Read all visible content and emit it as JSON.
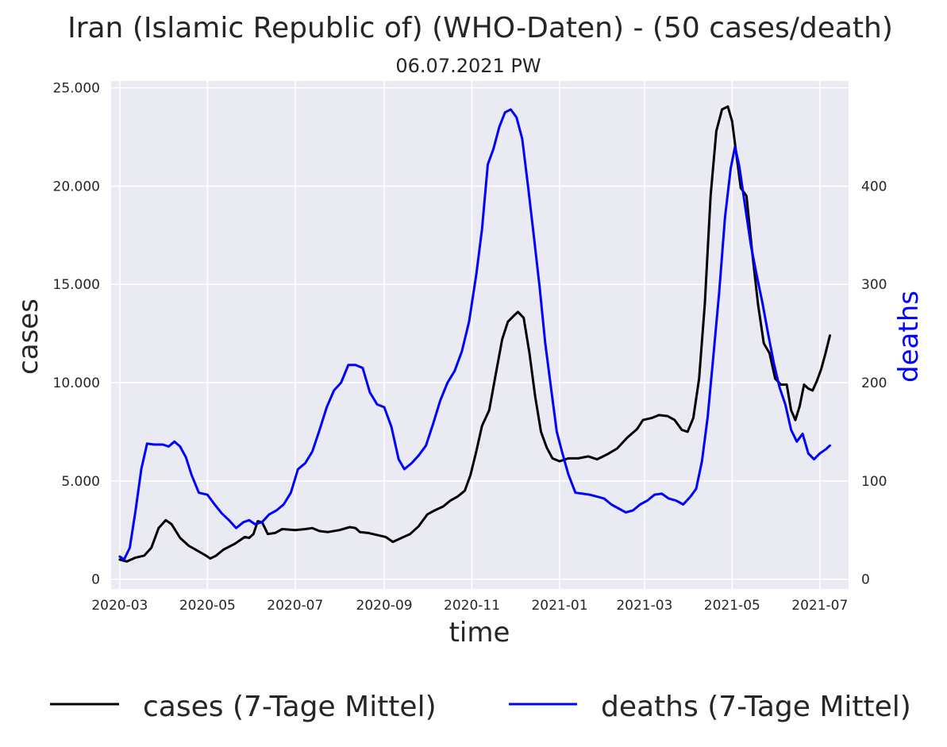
{
  "chart_data": {
    "type": "line",
    "title": "Iran (Islamic Republic of) (WHO-Daten) - (50 cases/death)",
    "subtitle": "06.07.2021 PW",
    "xlabel": "time",
    "ylabel_left": "cases",
    "ylabel_right": "deaths",
    "x_range": [
      "2020-02-24",
      "2021-07-21"
    ],
    "ylim_left": [
      -500,
      25350
    ],
    "ylim_right": [
      -10,
      507
    ],
    "x_ticks": [
      "2020-03",
      "2020-05",
      "2020-07",
      "2020-09",
      "2020-11",
      "2021-01",
      "2021-03",
      "2021-05",
      "2021-07"
    ],
    "y_ticks_left": [
      {
        "value": 0,
        "label": "0"
      },
      {
        "value": 5000,
        "label": "5.000"
      },
      {
        "value": 10000,
        "label": "10.000"
      },
      {
        "value": 15000,
        "label": "15.000"
      },
      {
        "value": 20000,
        "label": "20.000"
      },
      {
        "value": 25000,
        "label": "25.000"
      }
    ],
    "y_ticks_right": [
      {
        "value": 0,
        "label": "0"
      },
      {
        "value": 100,
        "label": "100"
      },
      {
        "value": 200,
        "label": "200"
      },
      {
        "value": 300,
        "label": "300"
      },
      {
        "value": 400,
        "label": "400"
      }
    ],
    "grid": true,
    "legend_position": "bottom",
    "series": [
      {
        "name": "cases (7-Tage Mittel)",
        "axis": "left",
        "color": "#000000",
        "points": [
          [
            "2020-03-01",
            1000
          ],
          [
            "2020-03-06",
            900
          ],
          [
            "2020-03-12",
            1100
          ],
          [
            "2020-03-18",
            1200
          ],
          [
            "2020-03-23",
            1600
          ],
          [
            "2020-03-28",
            2600
          ],
          [
            "2020-04-02",
            3000
          ],
          [
            "2020-04-06",
            2800
          ],
          [
            "2020-04-12",
            2100
          ],
          [
            "2020-04-18",
            1700
          ],
          [
            "2020-04-24",
            1450
          ],
          [
            "2020-04-30",
            1200
          ],
          [
            "2020-05-03",
            1050
          ],
          [
            "2020-05-07",
            1200
          ],
          [
            "2020-05-12",
            1500
          ],
          [
            "2020-05-20",
            1800
          ],
          [
            "2020-05-27",
            2150
          ],
          [
            "2020-05-30",
            2100
          ],
          [
            "2020-06-02",
            2300
          ],
          [
            "2020-06-05",
            2950
          ],
          [
            "2020-06-08",
            2900
          ],
          [
            "2020-06-12",
            2300
          ],
          [
            "2020-06-17",
            2350
          ],
          [
            "2020-06-22",
            2550
          ],
          [
            "2020-07-01",
            2500
          ],
          [
            "2020-07-08",
            2550
          ],
          [
            "2020-07-13",
            2600
          ],
          [
            "2020-07-18",
            2450
          ],
          [
            "2020-07-24",
            2400
          ],
          [
            "2020-08-01",
            2500
          ],
          [
            "2020-08-08",
            2650
          ],
          [
            "2020-08-12",
            2600
          ],
          [
            "2020-08-15",
            2400
          ],
          [
            "2020-08-21",
            2350
          ],
          [
            "2020-08-27",
            2250
          ],
          [
            "2020-09-02",
            2150
          ],
          [
            "2020-09-07",
            1900
          ],
          [
            "2020-09-13",
            2100
          ],
          [
            "2020-09-19",
            2300
          ],
          [
            "2020-09-25",
            2700
          ],
          [
            "2020-10-01",
            3300
          ],
          [
            "2020-10-06",
            3500
          ],
          [
            "2020-10-12",
            3700
          ],
          [
            "2020-10-17",
            4000
          ],
          [
            "2020-10-22",
            4200
          ],
          [
            "2020-10-27",
            4500
          ],
          [
            "2020-10-31",
            5300
          ],
          [
            "2020-11-04",
            6500
          ],
          [
            "2020-11-08",
            7800
          ],
          [
            "2020-11-13",
            8600
          ],
          [
            "2020-11-18",
            10600
          ],
          [
            "2020-11-22",
            12200
          ],
          [
            "2020-11-26",
            13100
          ],
          [
            "2020-11-30",
            13400
          ],
          [
            "2020-12-03",
            13600
          ],
          [
            "2020-12-07",
            13300
          ],
          [
            "2020-12-11",
            11500
          ],
          [
            "2020-12-15",
            9300
          ],
          [
            "2020-12-19",
            7500
          ],
          [
            "2020-12-23",
            6700
          ],
          [
            "2020-12-27",
            6150
          ],
          [
            "2021-01-01",
            6000
          ],
          [
            "2021-01-07",
            6150
          ],
          [
            "2021-01-14",
            6150
          ],
          [
            "2021-01-21",
            6250
          ],
          [
            "2021-01-27",
            6100
          ],
          [
            "2021-02-03",
            6350
          ],
          [
            "2021-02-10",
            6650
          ],
          [
            "2021-02-17",
            7200
          ],
          [
            "2021-02-24",
            7650
          ],
          [
            "2021-02-28",
            8100
          ],
          [
            "2021-03-06",
            8200
          ],
          [
            "2021-03-11",
            8350
          ],
          [
            "2021-03-17",
            8300
          ],
          [
            "2021-03-22",
            8100
          ],
          [
            "2021-03-27",
            7600
          ],
          [
            "2021-03-31",
            7500
          ],
          [
            "2021-04-04",
            8200
          ],
          [
            "2021-04-08",
            10200
          ],
          [
            "2021-04-12",
            14000
          ],
          [
            "2021-04-16",
            19500
          ],
          [
            "2021-04-20",
            22800
          ],
          [
            "2021-04-24",
            23900
          ],
          [
            "2021-04-28",
            24050
          ],
          [
            "2021-05-01",
            23300
          ],
          [
            "2021-05-04",
            21600
          ],
          [
            "2021-05-07",
            19900
          ],
          [
            "2021-05-11",
            19500
          ],
          [
            "2021-05-15",
            16600
          ],
          [
            "2021-05-19",
            14000
          ],
          [
            "2021-05-23",
            12000
          ],
          [
            "2021-05-27",
            11500
          ],
          [
            "2021-05-31",
            10200
          ],
          [
            "2021-06-04",
            9900
          ],
          [
            "2021-06-08",
            9900
          ],
          [
            "2021-06-11",
            8600
          ],
          [
            "2021-06-14",
            8100
          ],
          [
            "2021-06-17",
            8800
          ],
          [
            "2021-06-20",
            9900
          ],
          [
            "2021-06-23",
            9700
          ],
          [
            "2021-06-26",
            9600
          ],
          [
            "2021-06-29",
            10100
          ],
          [
            "2021-07-02",
            10700
          ],
          [
            "2021-07-05",
            11500
          ],
          [
            "2021-07-08",
            12400
          ]
        ]
      },
      {
        "name": "deaths (7-Tage Mittel)",
        "axis": "right",
        "color": "#0000ff",
        "points": [
          [
            "2020-03-01",
            23
          ],
          [
            "2020-03-04",
            20
          ],
          [
            "2020-03-08",
            32
          ],
          [
            "2020-03-12",
            70
          ],
          [
            "2020-03-16",
            112
          ],
          [
            "2020-03-20",
            138
          ],
          [
            "2020-03-25",
            137
          ],
          [
            "2020-03-31",
            137
          ],
          [
            "2020-04-04",
            135
          ],
          [
            "2020-04-08",
            140
          ],
          [
            "2020-04-12",
            135
          ],
          [
            "2020-04-16",
            124
          ],
          [
            "2020-04-20",
            106
          ],
          [
            "2020-04-25",
            88
          ],
          [
            "2020-05-01",
            86
          ],
          [
            "2020-05-06",
            76
          ],
          [
            "2020-05-11",
            67
          ],
          [
            "2020-05-16",
            60
          ],
          [
            "2020-05-21",
            52
          ],
          [
            "2020-05-26",
            58
          ],
          [
            "2020-05-30",
            60
          ],
          [
            "2020-06-03",
            56
          ],
          [
            "2020-06-08",
            58
          ],
          [
            "2020-06-13",
            66
          ],
          [
            "2020-06-18",
            70
          ],
          [
            "2020-06-23",
            76
          ],
          [
            "2020-06-28",
            88
          ],
          [
            "2020-07-03",
            112
          ],
          [
            "2020-07-08",
            118
          ],
          [
            "2020-07-13",
            130
          ],
          [
            "2020-07-18",
            152
          ],
          [
            "2020-07-23",
            175
          ],
          [
            "2020-07-28",
            192
          ],
          [
            "2020-08-02",
            200
          ],
          [
            "2020-08-07",
            218
          ],
          [
            "2020-08-12",
            218
          ],
          [
            "2020-08-17",
            215
          ],
          [
            "2020-08-22",
            190
          ],
          [
            "2020-08-27",
            178
          ],
          [
            "2020-09-01",
            175
          ],
          [
            "2020-09-06",
            155
          ],
          [
            "2020-09-11",
            122
          ],
          [
            "2020-09-15",
            112
          ],
          [
            "2020-09-20",
            118
          ],
          [
            "2020-09-25",
            126
          ],
          [
            "2020-09-30",
            136
          ],
          [
            "2020-10-05",
            158
          ],
          [
            "2020-10-10",
            182
          ],
          [
            "2020-10-15",
            200
          ],
          [
            "2020-10-20",
            212
          ],
          [
            "2020-10-25",
            232
          ],
          [
            "2020-10-30",
            262
          ],
          [
            "2020-11-04",
            310
          ],
          [
            "2020-11-08",
            356
          ],
          [
            "2020-11-12",
            422
          ],
          [
            "2020-11-16",
            438
          ],
          [
            "2020-11-20",
            460
          ],
          [
            "2020-11-24",
            475
          ],
          [
            "2020-11-28",
            478
          ],
          [
            "2020-12-02",
            470
          ],
          [
            "2020-12-06",
            448
          ],
          [
            "2020-12-10",
            400
          ],
          [
            "2020-12-14",
            350
          ],
          [
            "2020-12-18",
            298
          ],
          [
            "2020-12-22",
            240
          ],
          [
            "2020-12-26",
            195
          ],
          [
            "2020-12-30",
            150
          ],
          [
            "2021-01-03",
            128
          ],
          [
            "2021-01-07",
            107
          ],
          [
            "2021-01-12",
            88
          ],
          [
            "2021-01-17",
            87
          ],
          [
            "2021-01-22",
            86
          ],
          [
            "2021-01-27",
            84
          ],
          [
            "2021-02-01",
            82
          ],
          [
            "2021-02-06",
            76
          ],
          [
            "2021-02-11",
            72
          ],
          [
            "2021-02-16",
            68
          ],
          [
            "2021-02-21",
            70
          ],
          [
            "2021-02-26",
            76
          ],
          [
            "2021-03-03",
            80
          ],
          [
            "2021-03-08",
            86
          ],
          [
            "2021-03-13",
            87
          ],
          [
            "2021-03-18",
            82
          ],
          [
            "2021-03-23",
            80
          ],
          [
            "2021-03-28",
            76
          ],
          [
            "2021-04-02",
            84
          ],
          [
            "2021-04-06",
            92
          ],
          [
            "2021-04-10",
            120
          ],
          [
            "2021-04-14",
            165
          ],
          [
            "2021-04-18",
            228
          ],
          [
            "2021-04-22",
            292
          ],
          [
            "2021-04-26",
            368
          ],
          [
            "2021-04-30",
            418
          ],
          [
            "2021-05-03",
            440
          ],
          [
            "2021-05-06",
            420
          ],
          [
            "2021-05-10",
            380
          ],
          [
            "2021-05-14",
            340
          ],
          [
            "2021-05-18",
            310
          ],
          [
            "2021-05-22",
            282
          ],
          [
            "2021-05-26",
            250
          ],
          [
            "2021-05-30",
            220
          ],
          [
            "2021-06-03",
            195
          ],
          [
            "2021-06-07",
            178
          ],
          [
            "2021-06-11",
            152
          ],
          [
            "2021-06-15",
            140
          ],
          [
            "2021-06-19",
            148
          ],
          [
            "2021-06-23",
            128
          ],
          [
            "2021-06-27",
            122
          ],
          [
            "2021-07-01",
            128
          ],
          [
            "2021-07-05",
            132
          ],
          [
            "2021-07-08",
            136
          ]
        ]
      }
    ]
  }
}
